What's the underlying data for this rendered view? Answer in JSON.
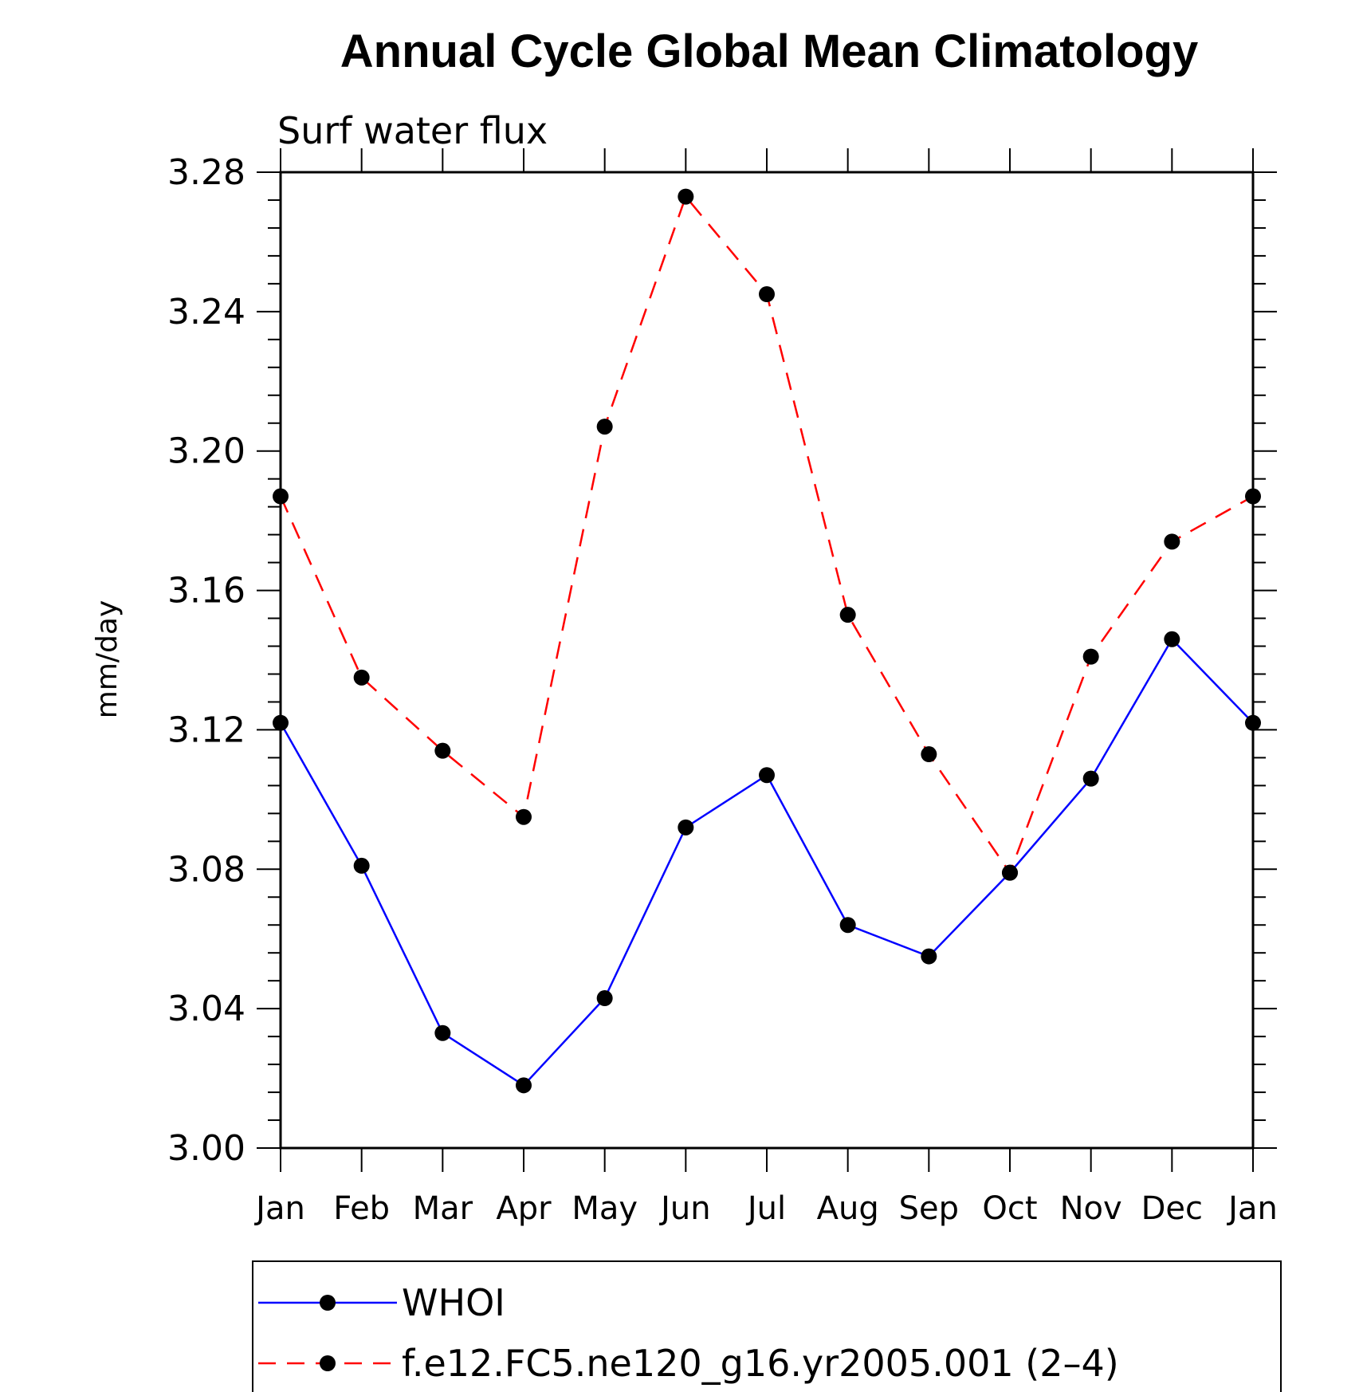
{
  "chart_data": {
    "type": "line",
    "title": "Annual Cycle Global Mean Climatology",
    "subtitle": "Surf  water  flux",
    "xlabel": "",
    "ylabel": "mm/day",
    "categories": [
      "Jan",
      "Feb",
      "Mar",
      "Apr",
      "May",
      "Jun",
      "Jul",
      "Aug",
      "Sep",
      "Oct",
      "Nov",
      "Dec",
      "Jan"
    ],
    "ylim": [
      3.0,
      3.28
    ],
    "yticks": [
      "3.00",
      "3.04",
      "3.08",
      "3.12",
      "3.16",
      "3.20",
      "3.24",
      "3.28"
    ],
    "grid": false,
    "legend_position": "bottom",
    "series": [
      {
        "name": "WHOI",
        "color": "#0000ff",
        "style": "solid",
        "marker": "filled-circle",
        "values": [
          3.122,
          3.081,
          3.033,
          3.018,
          3.043,
          3.092,
          3.107,
          3.064,
          3.055,
          3.079,
          3.106,
          3.146,
          3.122
        ]
      },
      {
        "name": "f.e12.FC5.ne120_g16.yr2005.001 (2–4)",
        "color": "#ff0000",
        "style": "dashed",
        "marker": "filled-circle",
        "values": [
          3.187,
          3.135,
          3.114,
          3.095,
          3.207,
          3.273,
          3.245,
          3.153,
          3.113,
          3.079,
          3.141,
          3.174,
          3.187
        ]
      }
    ]
  }
}
